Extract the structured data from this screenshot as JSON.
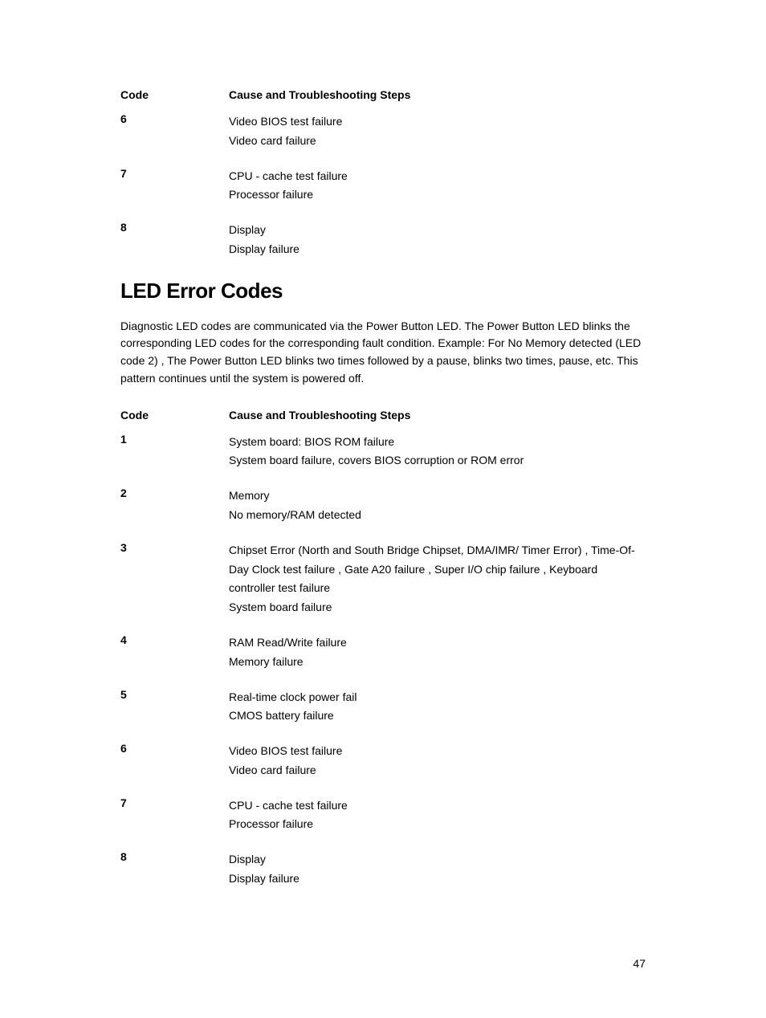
{
  "table1": {
    "header": {
      "code": "Code",
      "cause": "Cause and Troubleshooting Steps"
    },
    "rows": [
      {
        "code": "6",
        "line1": "Video BIOS test failure",
        "line2": "Video card failure"
      },
      {
        "code": "7",
        "line1": "CPU - cache test failure",
        "line2": "Processor failure"
      },
      {
        "code": "8",
        "line1": "Display",
        "line2": "Display failure"
      }
    ]
  },
  "section": {
    "heading": "LED Error Codes",
    "paragraph": "Diagnostic LED codes are communicated via the Power Button LED. The Power Button LED blinks the corresponding LED codes for the corresponding fault condition. Example: For No Memory detected (LED code 2) , The Power Button LED blinks two times followed by a pause, blinks two times, pause, etc. This pattern continues until the system is powered off."
  },
  "table2": {
    "header": {
      "code": "Code",
      "cause": "Cause and Troubleshooting Steps"
    },
    "rows": [
      {
        "code": "1",
        "line1": "System board: BIOS ROM failure",
        "line2": "System board failure, covers BIOS corruption or ROM error"
      },
      {
        "code": "2",
        "line1": "Memory",
        "line2": "No memory/RAM detected"
      },
      {
        "code": "3",
        "line1": "Chipset Error (North and South Bridge Chipset, DMA/IMR/ Timer Error) , Time-Of-Day Clock test failure , Gate A20 failure , Super I/O chip failure , Keyboard controller test failure",
        "line2": "System board failure"
      },
      {
        "code": "4",
        "line1": "RAM Read/Write failure",
        "line2": "Memory failure"
      },
      {
        "code": "5",
        "line1": "Real-time clock power fail",
        "line2": "CMOS battery failure"
      },
      {
        "code": "6",
        "line1": "Video BIOS test failure",
        "line2": "Video card failure"
      },
      {
        "code": "7",
        "line1": "CPU - cache test failure",
        "line2": "Processor failure"
      },
      {
        "code": "8",
        "line1": "Display",
        "line2": "Display failure"
      }
    ]
  },
  "pageNumber": "47"
}
